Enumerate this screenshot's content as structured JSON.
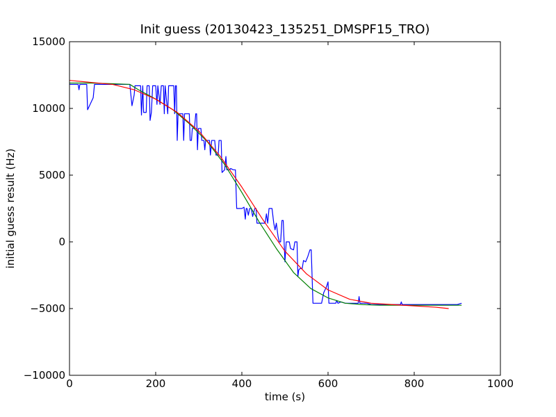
{
  "chart_data": {
    "type": "line",
    "title": "Init guess (20130423_135251_DMSPF15_TRO)",
    "xlabel": "time (s)",
    "ylabel": "initial guess result (Hz)",
    "xlim": [
      0,
      1000
    ],
    "ylim": [
      -10000,
      15000
    ],
    "x_ticks": [
      0,
      200,
      400,
      600,
      800,
      1000
    ],
    "x_tick_labels": [
      "0",
      "200",
      "400",
      "600",
      "800",
      "1000"
    ],
    "y_ticks": [
      -10000,
      -5000,
      0,
      5000,
      10000,
      15000
    ],
    "y_tick_labels": [
      "−10000",
      "−5000",
      "0",
      "5000",
      "10000",
      "15000"
    ],
    "grid": false,
    "legend": "none",
    "series": [
      {
        "color": "#0000ff",
        "points": [
          [
            0,
            11800
          ],
          [
            20,
            11800
          ],
          [
            22,
            11400
          ],
          [
            24,
            11800
          ],
          [
            40,
            11800
          ],
          [
            42,
            9900
          ],
          [
            55,
            10800
          ],
          [
            58,
            11800
          ],
          [
            140,
            11800
          ],
          [
            145,
            10200
          ],
          [
            150,
            11000
          ],
          [
            152,
            11700
          ],
          [
            165,
            11700
          ],
          [
            167,
            9500
          ],
          [
            170,
            11700
          ],
          [
            172,
            9700
          ],
          [
            178,
            9700
          ],
          [
            180,
            11700
          ],
          [
            185,
            11700
          ],
          [
            187,
            9100
          ],
          [
            190,
            9700
          ],
          [
            193,
            11700
          ],
          [
            200,
            11700
          ],
          [
            203,
            10300
          ],
          [
            205,
            11700
          ],
          [
            210,
            10300
          ],
          [
            213,
            11700
          ],
          [
            218,
            11700
          ],
          [
            220,
            9600
          ],
          [
            222,
            11700
          ],
          [
            228,
            9600
          ],
          [
            230,
            11700
          ],
          [
            242,
            11700
          ],
          [
            244,
            9600
          ],
          [
            246,
            11700
          ],
          [
            248,
            11700
          ],
          [
            250,
            7600
          ],
          [
            252,
            9600
          ],
          [
            263,
            9600
          ],
          [
            265,
            7600
          ],
          [
            267,
            9600
          ],
          [
            278,
            9600
          ],
          [
            280,
            7600
          ],
          [
            283,
            7600
          ],
          [
            285,
            8500
          ],
          [
            290,
            8500
          ],
          [
            293,
            9600
          ],
          [
            295,
            9600
          ],
          [
            297,
            6900
          ],
          [
            299,
            8500
          ],
          [
            305,
            8500
          ],
          [
            307,
            7600
          ],
          [
            312,
            7600
          ],
          [
            314,
            6900
          ],
          [
            316,
            7600
          ],
          [
            325,
            7600
          ],
          [
            327,
            6500
          ],
          [
            330,
            7600
          ],
          [
            337,
            7600
          ],
          [
            340,
            6500
          ],
          [
            345,
            6500
          ],
          [
            347,
            7600
          ],
          [
            352,
            7600
          ],
          [
            354,
            5200
          ],
          [
            360,
            5400
          ],
          [
            363,
            6400
          ],
          [
            365,
            5400
          ],
          [
            372,
            5400
          ],
          [
            374,
            5500
          ],
          [
            380,
            5400
          ],
          [
            385,
            5400
          ],
          [
            388,
            2500
          ],
          [
            395,
            2500
          ],
          [
            400,
            2500
          ],
          [
            405,
            2600
          ],
          [
            408,
            1700
          ],
          [
            410,
            2500
          ],
          [
            412,
            2500
          ],
          [
            415,
            2000
          ],
          [
            418,
            2500
          ],
          [
            422,
            2500
          ],
          [
            425,
            1900
          ],
          [
            430,
            2500
          ],
          [
            433,
            2500
          ],
          [
            435,
            1400
          ],
          [
            440,
            1400
          ],
          [
            450,
            1400
          ],
          [
            454,
            1400
          ],
          [
            457,
            2100
          ],
          [
            460,
            1400
          ],
          [
            463,
            2500
          ],
          [
            470,
            2500
          ],
          [
            474,
            1400
          ],
          [
            477,
            900
          ],
          [
            480,
            1400
          ],
          [
            484,
            400
          ],
          [
            487,
            0
          ],
          [
            490,
            0
          ],
          [
            493,
            1600
          ],
          [
            496,
            1600
          ],
          [
            500,
            -1500
          ],
          [
            503,
            0
          ],
          [
            510,
            0
          ],
          [
            513,
            -500
          ],
          [
            520,
            -600
          ],
          [
            523,
            0
          ],
          [
            528,
            0
          ],
          [
            530,
            -2600
          ],
          [
            532,
            -2100
          ],
          [
            535,
            -2000
          ],
          [
            540,
            -2000
          ],
          [
            543,
            -1400
          ],
          [
            548,
            -1500
          ],
          [
            553,
            -1100
          ],
          [
            558,
            -600
          ],
          [
            561,
            -600
          ],
          [
            565,
            -4600
          ],
          [
            570,
            -4600
          ],
          [
            578,
            -4600
          ],
          [
            585,
            -4600
          ],
          [
            590,
            -3800
          ],
          [
            596,
            -3400
          ],
          [
            600,
            -3000
          ],
          [
            602,
            -4600
          ],
          [
            610,
            -4600
          ],
          [
            613,
            -4600
          ],
          [
            618,
            -4600
          ],
          [
            620,
            -4400
          ],
          [
            623,
            -4600
          ],
          [
            630,
            -4500
          ],
          [
            640,
            -4600
          ],
          [
            660,
            -4600
          ],
          [
            670,
            -4600
          ],
          [
            672,
            -4100
          ],
          [
            674,
            -4600
          ],
          [
            690,
            -4600
          ],
          [
            700,
            -4700
          ],
          [
            720,
            -4700
          ],
          [
            760,
            -4700
          ],
          [
            768,
            -4700
          ],
          [
            770,
            -4500
          ],
          [
            772,
            -4700
          ],
          [
            800,
            -4700
          ],
          [
            820,
            -4700
          ],
          [
            850,
            -4700
          ],
          [
            880,
            -4700
          ],
          [
            900,
            -4700
          ],
          [
            910,
            -4600
          ]
        ]
      },
      {
        "color": "#008000",
        "points": [
          [
            0,
            11900
          ],
          [
            50,
            11900
          ],
          [
            100,
            11850
          ],
          [
            140,
            11800
          ],
          [
            160,
            11400
          ],
          [
            200,
            10700
          ],
          [
            240,
            9900
          ],
          [
            280,
            8800
          ],
          [
            320,
            7500
          ],
          [
            360,
            5800
          ],
          [
            400,
            3700
          ],
          [
            440,
            1500
          ],
          [
            480,
            -500
          ],
          [
            520,
            -2300
          ],
          [
            560,
            -3500
          ],
          [
            600,
            -4200
          ],
          [
            640,
            -4600
          ],
          [
            680,
            -4700
          ],
          [
            720,
            -4750
          ],
          [
            800,
            -4750
          ],
          [
            880,
            -4750
          ],
          [
            910,
            -4750
          ]
        ]
      },
      {
        "color": "#ff0000",
        "points": [
          [
            0,
            12100
          ],
          [
            100,
            11800
          ],
          [
            150,
            11400
          ],
          [
            200,
            10700
          ],
          [
            250,
            9700
          ],
          [
            300,
            8300
          ],
          [
            350,
            6400
          ],
          [
            400,
            4100
          ],
          [
            450,
            1600
          ],
          [
            500,
            -700
          ],
          [
            550,
            -2400
          ],
          [
            600,
            -3600
          ],
          [
            650,
            -4300
          ],
          [
            700,
            -4600
          ],
          [
            750,
            -4700
          ],
          [
            800,
            -4800
          ],
          [
            850,
            -4900
          ],
          [
            880,
            -5000
          ]
        ]
      }
    ]
  }
}
